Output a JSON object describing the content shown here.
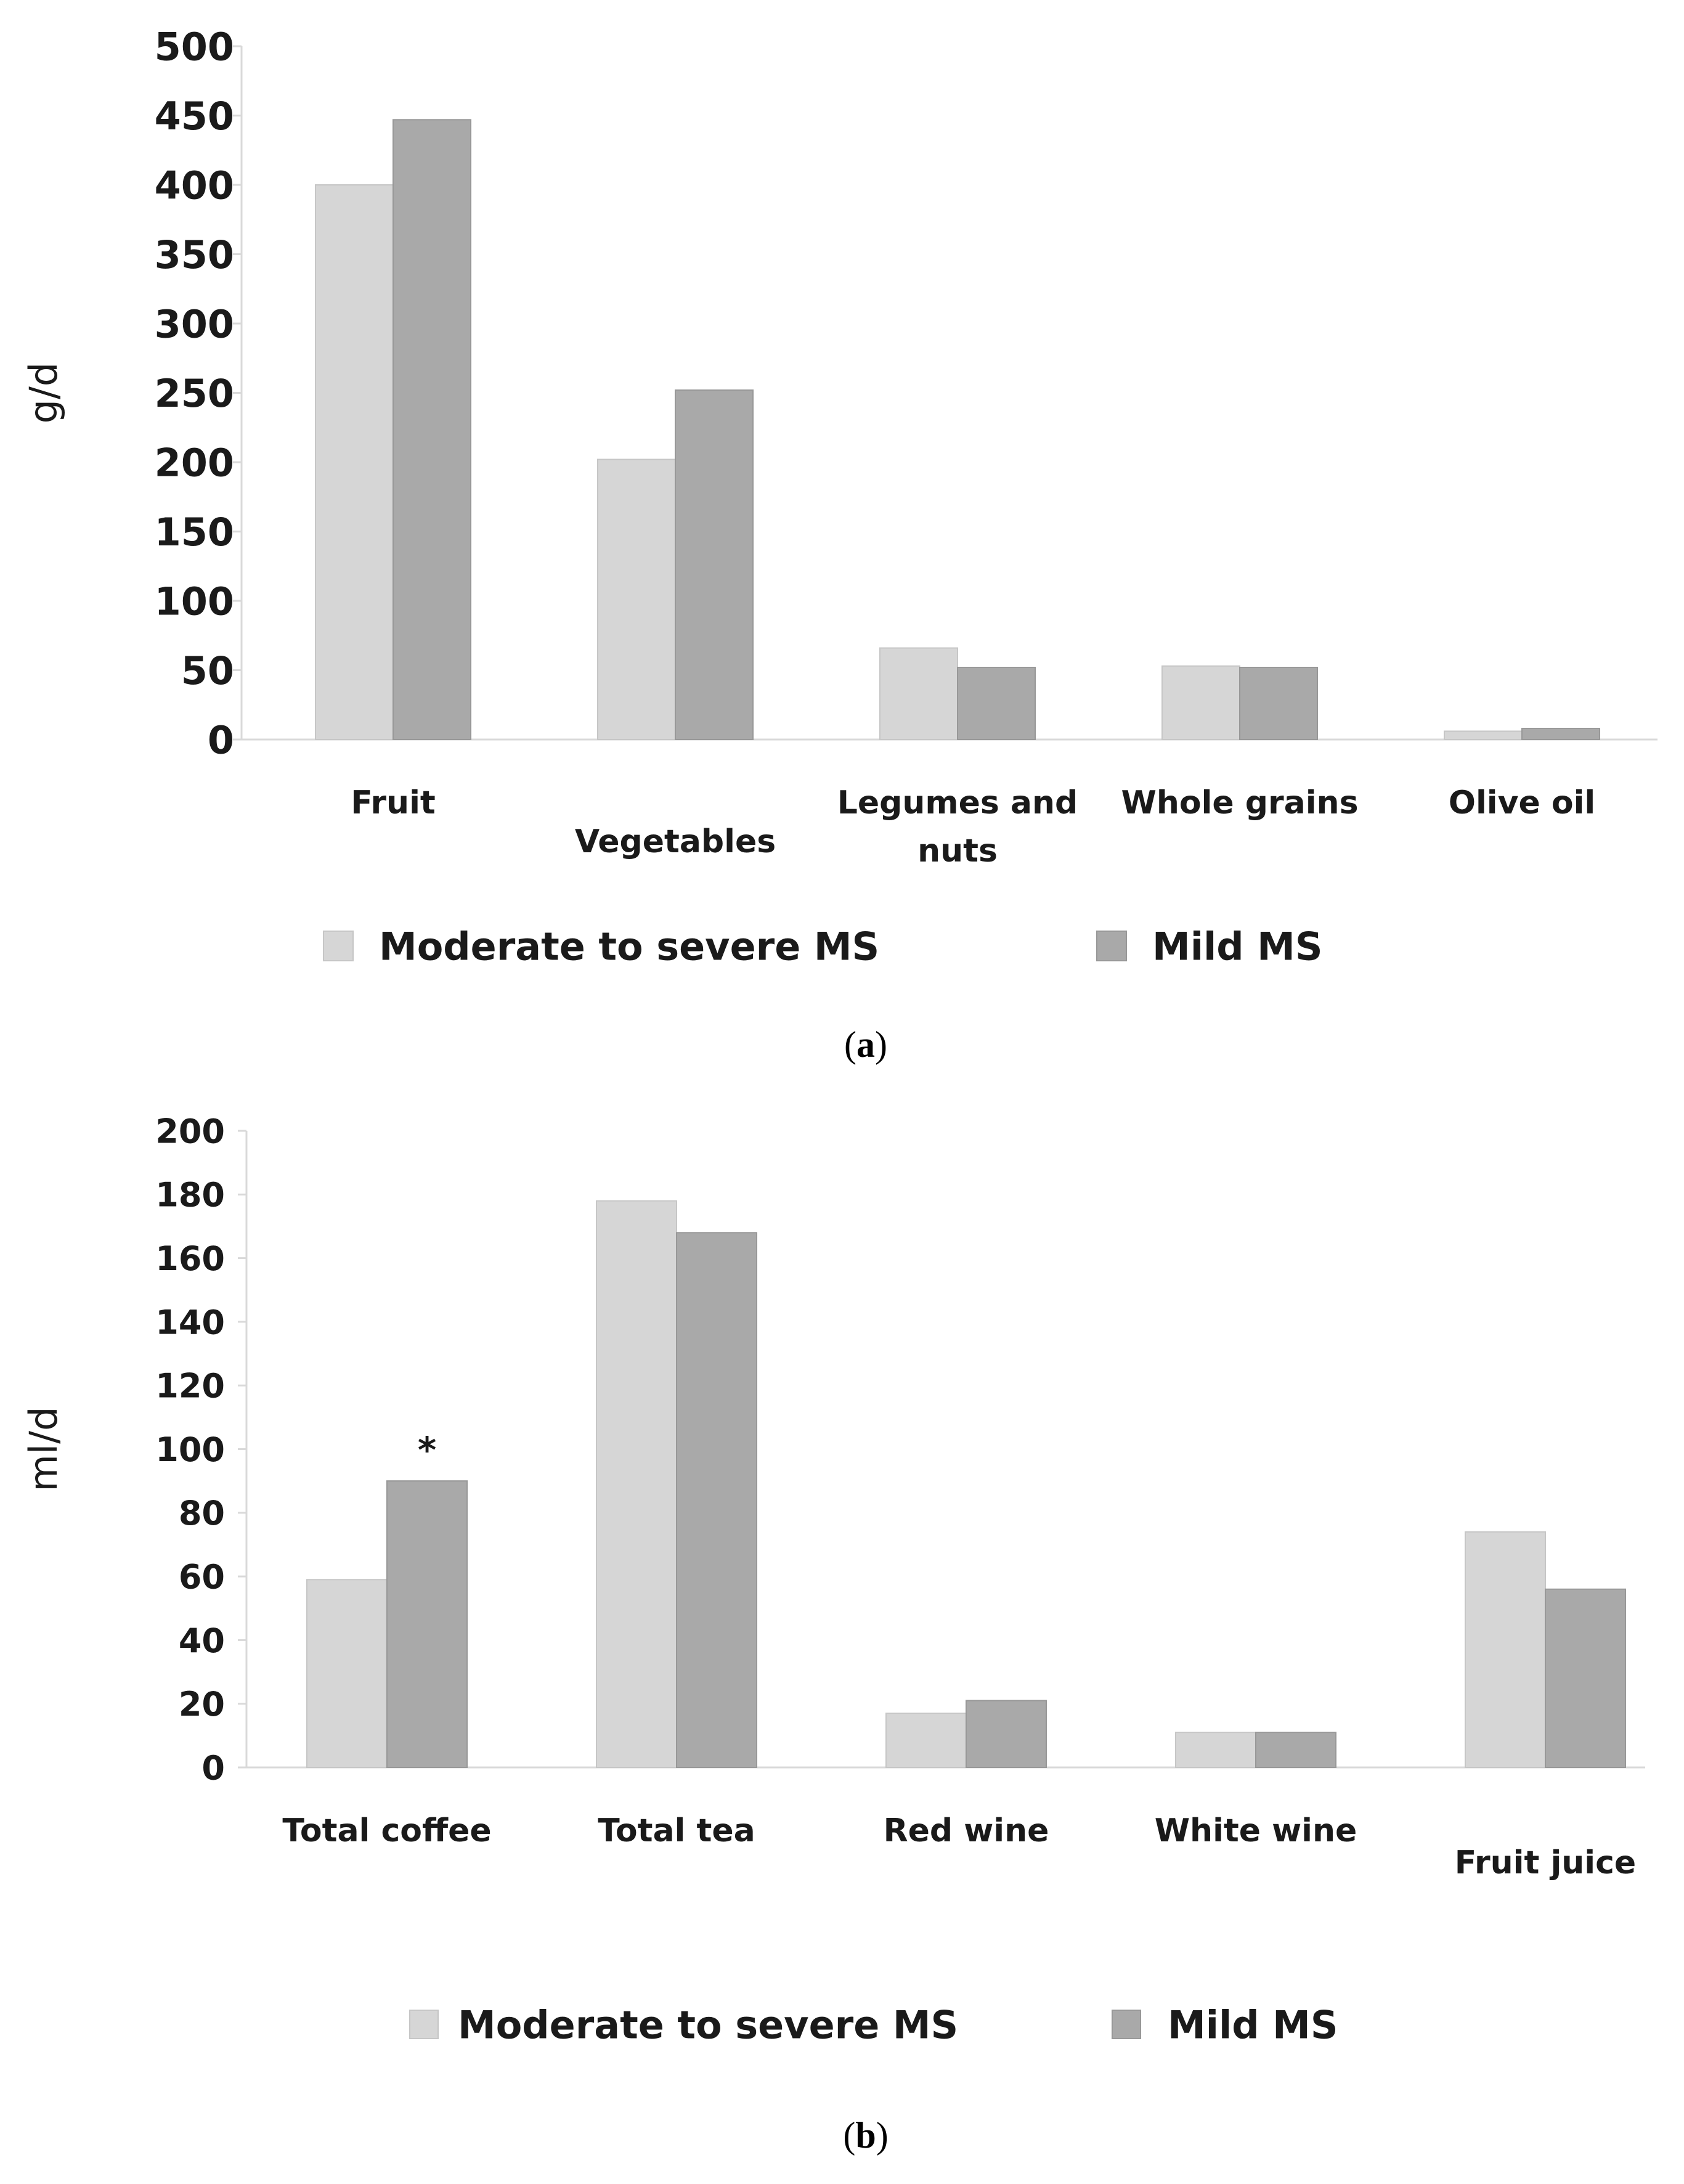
{
  "chart_data": [
    {
      "id": "a",
      "type": "bar",
      "panel_label": "a",
      "ylabel": "g/d",
      "ylim": [
        0,
        500
      ],
      "yticks": [
        0,
        50,
        100,
        150,
        200,
        250,
        300,
        350,
        400,
        450,
        500
      ],
      "categories": [
        [
          "Fruit"
        ],
        [
          "Vegetables"
        ],
        [
          "Legumes and",
          "nuts"
        ],
        [
          "Whole grains"
        ],
        [
          "Olive oil"
        ]
      ],
      "series": [
        {
          "name": "Moderate to severe MS",
          "values": [
            400,
            202,
            66,
            53,
            6
          ]
        },
        {
          "name": "Mild MS",
          "values": [
            447,
            252,
            52,
            52,
            8
          ]
        }
      ],
      "annotations": [],
      "legend": "bottom"
    },
    {
      "id": "b",
      "type": "bar",
      "panel_label": "b",
      "ylabel": "ml/d",
      "ylim": [
        0,
        200
      ],
      "yticks": [
        0,
        20,
        40,
        60,
        80,
        100,
        120,
        140,
        160,
        180,
        200
      ],
      "categories": [
        [
          "Total coffee"
        ],
        [
          "Total tea"
        ],
        [
          "Red wine"
        ],
        [
          "White wine"
        ],
        [
          "Fruit juice"
        ]
      ],
      "series": [
        {
          "name": "Moderate to severe MS",
          "values": [
            59,
            178,
            17,
            11,
            74
          ]
        },
        {
          "name": "Mild MS",
          "values": [
            90,
            168,
            21,
            11,
            56
          ]
        }
      ],
      "annotations": [
        {
          "category_index": 0,
          "series_index": 1,
          "text": "*"
        }
      ],
      "legend": "bottom"
    }
  ],
  "colors": {
    "series": [
      "#d6d6d6",
      "#a9a9a9"
    ],
    "series_edge": [
      "#c6c6c6",
      "#989898"
    ],
    "axis": "#d9d9d9",
    "text": "#1a1a1a"
  }
}
